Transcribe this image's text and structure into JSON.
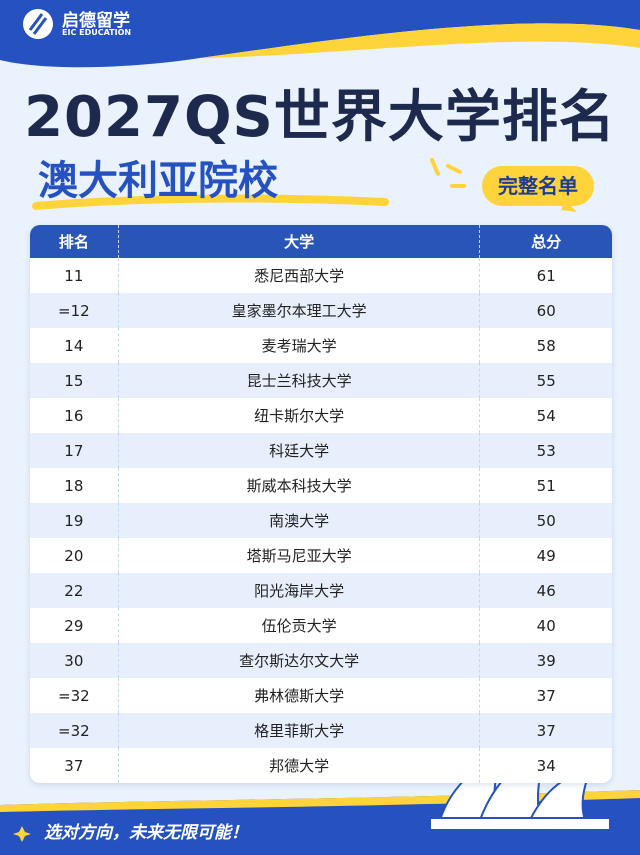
{
  "logo": {
    "name": "启德留学",
    "subtitle": "EIC EDUCATION"
  },
  "header": {
    "title": "2027QS世界大学排名",
    "subtitle": "澳大利亚院校",
    "badge": "完整名单"
  },
  "table": {
    "columns": [
      "排名",
      "大学",
      "总分"
    ],
    "rows": [
      [
        "11",
        "悉尼西部大学",
        "61"
      ],
      [
        "=12",
        "皇家墨尔本理工大学",
        "60"
      ],
      [
        "14",
        "麦考瑞大学",
        "58"
      ],
      [
        "15",
        "昆士兰科技大学",
        "55"
      ],
      [
        "16",
        "纽卡斯尔大学",
        "54"
      ],
      [
        "17",
        "科廷大学",
        "53"
      ],
      [
        "18",
        "斯威本科技大学",
        "51"
      ],
      [
        "19",
        "南澳大学",
        "50"
      ],
      [
        "20",
        "塔斯马尼亚大学",
        "49"
      ],
      [
        "22",
        "阳光海岸大学",
        "46"
      ],
      [
        "29",
        "伍伦贡大学",
        "40"
      ],
      [
        "30",
        "查尔斯达尔文大学",
        "39"
      ],
      [
        "=32",
        "弗林德斯大学",
        "37"
      ],
      [
        "=32",
        "格里菲斯大学",
        "37"
      ],
      [
        "37",
        "邦德大学",
        "34"
      ]
    ]
  },
  "footer": {
    "slogan": "选对方向，未来无限可能！"
  }
}
